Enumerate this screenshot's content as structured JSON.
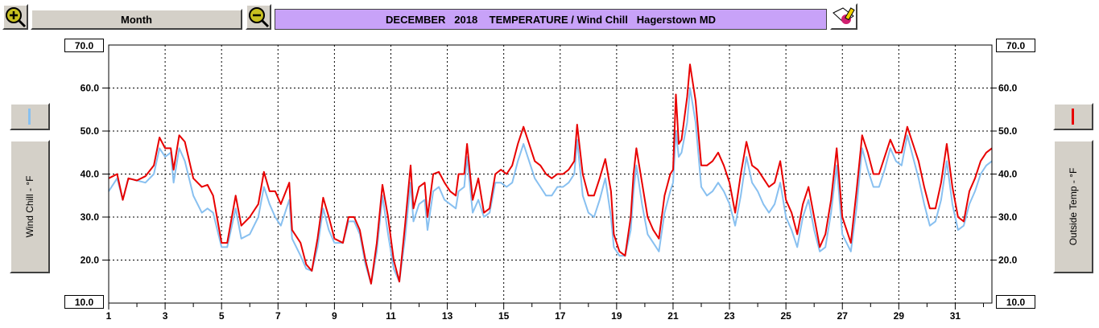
{
  "toolbar": {
    "zoom_in_icon": "zoom-in-icon",
    "zoom_out_icon": "zoom-out-icon",
    "period_label": "Month",
    "print_icon": "print-icon"
  },
  "title": "DECEMBER   2018    TEMPERATURE / Wind Chill   Hagerstown MD",
  "left_axis_label": "Wind Chill - °F",
  "right_axis_label": "Outside Temp - °F",
  "colors": {
    "temperature": "#e80000",
    "wind_chill": "#88c0f0",
    "title_bg": "#c8a2f8"
  },
  "chart_data": {
    "type": "line",
    "title": "DECEMBER   2018    TEMPERATURE / Wind Chill   Hagerstown MD",
    "xlabel": "",
    "ylabel_left": "Wind Chill - °F",
    "ylabel_right": "Outside Temp - °F",
    "xlim": [
      1,
      32.3
    ],
    "ylim": [
      10,
      70
    ],
    "y_ticks": [
      "70.0",
      "60.0",
      "50.0",
      "40.0",
      "30.0",
      "20.0",
      "10.0"
    ],
    "x_tick_labels": [
      "1",
      "3",
      "5",
      "7",
      "9",
      "11",
      "13",
      "15",
      "17",
      "19",
      "21",
      "23",
      "25",
      "27",
      "29",
      "31"
    ],
    "grid": true,
    "series": [
      {
        "name": "Outside Temp - °F",
        "points": [
          [
            1.0,
            39
          ],
          [
            1.3,
            40
          ],
          [
            1.5,
            34
          ],
          [
            1.7,
            39
          ],
          [
            2.0,
            38.5
          ],
          [
            2.3,
            39.5
          ],
          [
            2.6,
            42
          ],
          [
            2.8,
            48.5
          ],
          [
            3.0,
            46
          ],
          [
            3.2,
            46
          ],
          [
            3.3,
            41
          ],
          [
            3.5,
            49
          ],
          [
            3.7,
            47.5
          ],
          [
            4.0,
            39
          ],
          [
            4.3,
            37
          ],
          [
            4.5,
            37.5
          ],
          [
            4.7,
            35
          ],
          [
            5.0,
            24
          ],
          [
            5.2,
            24
          ],
          [
            5.5,
            35
          ],
          [
            5.7,
            28
          ],
          [
            6.0,
            30
          ],
          [
            6.3,
            33
          ],
          [
            6.5,
            40.5
          ],
          [
            6.7,
            36
          ],
          [
            6.9,
            36
          ],
          [
            7.1,
            33
          ],
          [
            7.4,
            38
          ],
          [
            7.5,
            27
          ],
          [
            7.8,
            24
          ],
          [
            8.0,
            19
          ],
          [
            8.2,
            17.5
          ],
          [
            8.4,
            25
          ],
          [
            8.6,
            34.5
          ],
          [
            8.8,
            30
          ],
          [
            9.0,
            25
          ],
          [
            9.3,
            24
          ],
          [
            9.5,
            30
          ],
          [
            9.7,
            30
          ],
          [
            9.9,
            27
          ],
          [
            10.1,
            20
          ],
          [
            10.3,
            14.5
          ],
          [
            10.5,
            24
          ],
          [
            10.7,
            37.5
          ],
          [
            10.9,
            30
          ],
          [
            11.1,
            20
          ],
          [
            11.3,
            15
          ],
          [
            11.5,
            28
          ],
          [
            11.7,
            42
          ],
          [
            11.8,
            32
          ],
          [
            12.0,
            37
          ],
          [
            12.2,
            38
          ],
          [
            12.3,
            30
          ],
          [
            12.5,
            40
          ],
          [
            12.7,
            40.5
          ],
          [
            12.9,
            38
          ],
          [
            13.1,
            36
          ],
          [
            13.3,
            35
          ],
          [
            13.4,
            40
          ],
          [
            13.6,
            40
          ],
          [
            13.7,
            47
          ],
          [
            13.9,
            34
          ],
          [
            14.1,
            39
          ],
          [
            14.3,
            31
          ],
          [
            14.5,
            32
          ],
          [
            14.7,
            40
          ],
          [
            14.9,
            41
          ],
          [
            15.1,
            40
          ],
          [
            15.3,
            42
          ],
          [
            15.5,
            47
          ],
          [
            15.7,
            51
          ],
          [
            15.9,
            47
          ],
          [
            16.1,
            43
          ],
          [
            16.3,
            42
          ],
          [
            16.5,
            40
          ],
          [
            16.7,
            39
          ],
          [
            16.9,
            40
          ],
          [
            17.1,
            40
          ],
          [
            17.3,
            41
          ],
          [
            17.5,
            43
          ],
          [
            17.6,
            51.5
          ],
          [
            17.8,
            40
          ],
          [
            18.0,
            35
          ],
          [
            18.2,
            35
          ],
          [
            18.4,
            39
          ],
          [
            18.6,
            43.5
          ],
          [
            18.8,
            36
          ],
          [
            18.9,
            26
          ],
          [
            19.1,
            22
          ],
          [
            19.3,
            21
          ],
          [
            19.5,
            30
          ],
          [
            19.6,
            40
          ],
          [
            19.7,
            46
          ],
          [
            19.9,
            38
          ],
          [
            20.1,
            30
          ],
          [
            20.3,
            27
          ],
          [
            20.5,
            25
          ],
          [
            20.7,
            35
          ],
          [
            20.9,
            40
          ],
          [
            21.0,
            41
          ],
          [
            21.1,
            58.5
          ],
          [
            21.2,
            47
          ],
          [
            21.3,
            48
          ],
          [
            21.5,
            58
          ],
          [
            21.6,
            65.5
          ],
          [
            21.8,
            57
          ],
          [
            22.0,
            42
          ],
          [
            22.2,
            42
          ],
          [
            22.4,
            43
          ],
          [
            22.6,
            45
          ],
          [
            22.8,
            42
          ],
          [
            23.0,
            38
          ],
          [
            23.2,
            31
          ],
          [
            23.4,
            40
          ],
          [
            23.6,
            47.5
          ],
          [
            23.8,
            42
          ],
          [
            24.0,
            41
          ],
          [
            24.2,
            39
          ],
          [
            24.4,
            37
          ],
          [
            24.6,
            38
          ],
          [
            24.8,
            43
          ],
          [
            25.0,
            34
          ],
          [
            25.2,
            31
          ],
          [
            25.4,
            26
          ],
          [
            25.6,
            33
          ],
          [
            25.8,
            37
          ],
          [
            26.0,
            30
          ],
          [
            26.2,
            23
          ],
          [
            26.4,
            26
          ],
          [
            26.6,
            34
          ],
          [
            26.8,
            46
          ],
          [
            27.0,
            30
          ],
          [
            27.3,
            24
          ],
          [
            27.5,
            36
          ],
          [
            27.7,
            49
          ],
          [
            27.9,
            45
          ],
          [
            28.1,
            40
          ],
          [
            28.3,
            40
          ],
          [
            28.5,
            44
          ],
          [
            28.7,
            48
          ],
          [
            28.9,
            45
          ],
          [
            29.1,
            45
          ],
          [
            29.3,
            51
          ],
          [
            29.5,
            47
          ],
          [
            29.7,
            43
          ],
          [
            29.9,
            37
          ],
          [
            30.1,
            32
          ],
          [
            30.3,
            32
          ],
          [
            30.5,
            38
          ],
          [
            30.7,
            47
          ],
          [
            30.9,
            37
          ],
          [
            31.1,
            30
          ],
          [
            31.3,
            29
          ],
          [
            31.5,
            36
          ],
          [
            31.7,
            39
          ],
          [
            31.9,
            43
          ],
          [
            32.1,
            45
          ],
          [
            32.3,
            46
          ]
        ]
      },
      {
        "name": "Wind Chill - °F",
        "points": [
          [
            1.0,
            36
          ],
          [
            1.3,
            39
          ],
          [
            1.5,
            34
          ],
          [
            1.7,
            39
          ],
          [
            2.0,
            38.5
          ],
          [
            2.3,
            38
          ],
          [
            2.6,
            40
          ],
          [
            2.8,
            46
          ],
          [
            3.0,
            44
          ],
          [
            3.2,
            45
          ],
          [
            3.3,
            38
          ],
          [
            3.5,
            46
          ],
          [
            3.7,
            43
          ],
          [
            4.0,
            35
          ],
          [
            4.3,
            31
          ],
          [
            4.5,
            32
          ],
          [
            4.7,
            31
          ],
          [
            5.0,
            23
          ],
          [
            5.2,
            23
          ],
          [
            5.5,
            32
          ],
          [
            5.7,
            25
          ],
          [
            6.0,
            26
          ],
          [
            6.3,
            30
          ],
          [
            6.5,
            37
          ],
          [
            6.7,
            33
          ],
          [
            6.9,
            30
          ],
          [
            7.1,
            28
          ],
          [
            7.4,
            34
          ],
          [
            7.5,
            25
          ],
          [
            7.8,
            21
          ],
          [
            8.0,
            18
          ],
          [
            8.2,
            17.5
          ],
          [
            8.4,
            23
          ],
          [
            8.6,
            32
          ],
          [
            8.8,
            27
          ],
          [
            9.0,
            24
          ],
          [
            9.3,
            24
          ],
          [
            9.5,
            29
          ],
          [
            9.7,
            29
          ],
          [
            9.9,
            26
          ],
          [
            10.1,
            19
          ],
          [
            10.3,
            14.5
          ],
          [
            10.5,
            22
          ],
          [
            10.7,
            35
          ],
          [
            10.9,
            26
          ],
          [
            11.1,
            18
          ],
          [
            11.3,
            15
          ],
          [
            11.5,
            25
          ],
          [
            11.7,
            38
          ],
          [
            11.8,
            29
          ],
          [
            12.0,
            33
          ],
          [
            12.2,
            34
          ],
          [
            12.3,
            27
          ],
          [
            12.5,
            36
          ],
          [
            12.7,
            37
          ],
          [
            12.9,
            34
          ],
          [
            13.1,
            33
          ],
          [
            13.3,
            32
          ],
          [
            13.4,
            36
          ],
          [
            13.6,
            37
          ],
          [
            13.7,
            44
          ],
          [
            13.9,
            31
          ],
          [
            14.1,
            34
          ],
          [
            14.3,
            30
          ],
          [
            14.5,
            31
          ],
          [
            14.7,
            38
          ],
          [
            14.9,
            38
          ],
          [
            15.1,
            37
          ],
          [
            15.3,
            38
          ],
          [
            15.5,
            43
          ],
          [
            15.7,
            47
          ],
          [
            15.9,
            43
          ],
          [
            16.1,
            39
          ],
          [
            16.3,
            37
          ],
          [
            16.5,
            35
          ],
          [
            16.7,
            35
          ],
          [
            16.9,
            37
          ],
          [
            17.1,
            37
          ],
          [
            17.3,
            38
          ],
          [
            17.5,
            40
          ],
          [
            17.6,
            48
          ],
          [
            17.8,
            35
          ],
          [
            18.0,
            31
          ],
          [
            18.2,
            30
          ],
          [
            18.4,
            34
          ],
          [
            18.6,
            39
          ],
          [
            18.8,
            30
          ],
          [
            18.9,
            23
          ],
          [
            19.1,
            21
          ],
          [
            19.3,
            21
          ],
          [
            19.5,
            27
          ],
          [
            19.6,
            36
          ],
          [
            19.7,
            42
          ],
          [
            19.9,
            33
          ],
          [
            20.1,
            26
          ],
          [
            20.3,
            24
          ],
          [
            20.5,
            22
          ],
          [
            20.7,
            31
          ],
          [
            20.9,
            36
          ],
          [
            21.0,
            38
          ],
          [
            21.1,
            50
          ],
          [
            21.2,
            44
          ],
          [
            21.3,
            45
          ],
          [
            21.5,
            52
          ],
          [
            21.6,
            60
          ],
          [
            21.8,
            52
          ],
          [
            22.0,
            37
          ],
          [
            22.2,
            35
          ],
          [
            22.4,
            36
          ],
          [
            22.6,
            38
          ],
          [
            22.8,
            36
          ],
          [
            23.0,
            33
          ],
          [
            23.2,
            28
          ],
          [
            23.4,
            35
          ],
          [
            23.6,
            44
          ],
          [
            23.8,
            38
          ],
          [
            24.0,
            36
          ],
          [
            24.2,
            33
          ],
          [
            24.4,
            31
          ],
          [
            24.6,
            33
          ],
          [
            24.8,
            38
          ],
          [
            25.0,
            30
          ],
          [
            25.2,
            27
          ],
          [
            25.4,
            23
          ],
          [
            25.6,
            30
          ],
          [
            25.8,
            34
          ],
          [
            26.0,
            27
          ],
          [
            26.2,
            22
          ],
          [
            26.4,
            23
          ],
          [
            26.6,
            31
          ],
          [
            26.8,
            42
          ],
          [
            27.0,
            26
          ],
          [
            27.3,
            22
          ],
          [
            27.5,
            32
          ],
          [
            27.7,
            46
          ],
          [
            27.9,
            41
          ],
          [
            28.1,
            37
          ],
          [
            28.3,
            37
          ],
          [
            28.5,
            41
          ],
          [
            28.7,
            46
          ],
          [
            28.9,
            43
          ],
          [
            29.1,
            42
          ],
          [
            29.3,
            49
          ],
          [
            29.5,
            44
          ],
          [
            29.7,
            39
          ],
          [
            29.9,
            33
          ],
          [
            30.1,
            28
          ],
          [
            30.3,
            29
          ],
          [
            30.5,
            34
          ],
          [
            30.7,
            43
          ],
          [
            30.9,
            33
          ],
          [
            31.1,
            27
          ],
          [
            31.3,
            28
          ],
          [
            31.5,
            33
          ],
          [
            31.7,
            36
          ],
          [
            31.9,
            40
          ],
          [
            32.1,
            42
          ],
          [
            32.3,
            43
          ]
        ]
      }
    ]
  }
}
